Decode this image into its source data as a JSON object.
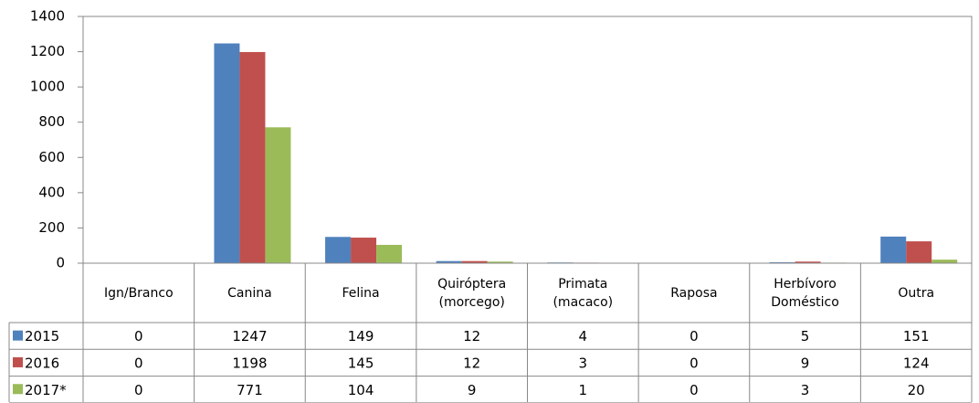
{
  "chart_data": {
    "type": "bar",
    "categories": [
      "Ign/Branco",
      "Canina",
      "Felina",
      "Quiróptera (morcego)",
      "Primata (macaco)",
      "Raposa",
      "Herbívoro Doméstico",
      "Outra"
    ],
    "series": [
      {
        "name": "2015",
        "color": "#4f81bd",
        "values": [
          0,
          1247,
          149,
          12,
          4,
          0,
          5,
          151
        ]
      },
      {
        "name": "2016",
        "color": "#c0504d",
        "values": [
          0,
          1198,
          145,
          12,
          3,
          0,
          9,
          124
        ]
      },
      {
        "name": "2017*",
        "color": "#9bbb59",
        "values": [
          0,
          771,
          104,
          9,
          1,
          0,
          3,
          20
        ]
      }
    ],
    "ylim": [
      0,
      1400
    ],
    "yticks": [
      0,
      200,
      400,
      600,
      800,
      1000,
      1200,
      1400
    ],
    "grid": false
  }
}
